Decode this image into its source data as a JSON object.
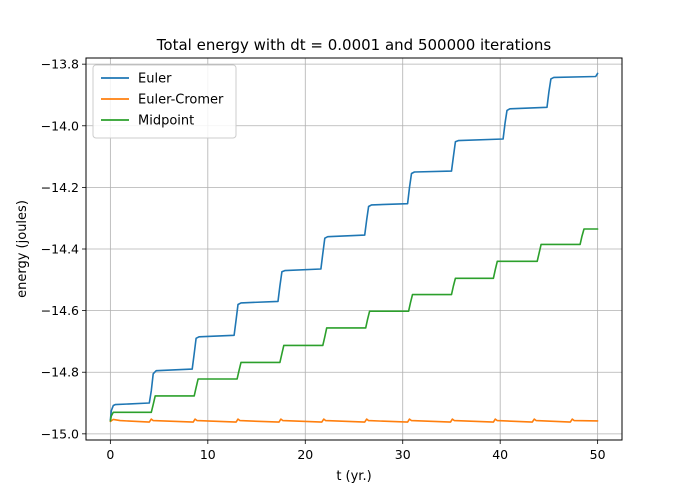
{
  "chart_data": {
    "type": "line",
    "title": "Total energy with dt = 0.0001 and 500000 iterations",
    "xlabel": "t (yr.)",
    "ylabel": "energy (joules)",
    "xlim": [
      -2.5,
      52.5
    ],
    "ylim": [
      -15.02,
      -13.78
    ],
    "xticks": [
      "0",
      "10",
      "20",
      "30",
      "40",
      "50"
    ],
    "yticks": [
      "−15.0",
      "−14.8",
      "−14.6",
      "−14.4",
      "−14.2",
      "−14.0",
      "−13.8"
    ],
    "xtick_values": [
      0,
      10,
      20,
      30,
      40,
      50
    ],
    "ytick_values": [
      -15.0,
      -14.8,
      -14.6,
      -14.4,
      -14.2,
      -14.0,
      -13.8
    ],
    "grid": true,
    "legend_position": "top-left",
    "series": [
      {
        "name": "Euler",
        "color": "#1f77b4",
        "x": [
          0,
          0.1,
          0.3,
          0.5,
          4.0,
          4.2,
          4.4,
          4.7,
          8.4,
          8.6,
          8.8,
          9.1,
          12.7,
          12.9,
          13.1,
          13.4,
          17.2,
          17.4,
          17.6,
          17.9,
          21.6,
          21.8,
          22.0,
          22.3,
          26.1,
          26.3,
          26.5,
          26.8,
          30.5,
          30.7,
          30.9,
          31.2,
          35.0,
          35.2,
          35.4,
          35.7,
          40.3,
          40.5,
          40.7,
          41.0,
          44.8,
          45.0,
          45.2,
          45.5,
          49.8,
          50.0
        ],
        "y": [
          -14.955,
          -14.925,
          -14.908,
          -14.905,
          -14.9,
          -14.86,
          -14.805,
          -14.795,
          -14.79,
          -14.74,
          -14.69,
          -14.685,
          -14.68,
          -14.63,
          -14.58,
          -14.575,
          -14.57,
          -14.52,
          -14.474,
          -14.47,
          -14.465,
          -14.415,
          -14.365,
          -14.36,
          -14.355,
          -14.305,
          -14.262,
          -14.257,
          -14.253,
          -14.2,
          -14.155,
          -14.15,
          -14.147,
          -14.1,
          -14.052,
          -14.048,
          -14.043,
          -13.99,
          -13.95,
          -13.945,
          -13.94,
          -13.89,
          -13.848,
          -13.843,
          -13.84,
          -13.83
        ]
      },
      {
        "name": "Euler-Cromer",
        "color": "#ff7f0e",
        "x": [
          0,
          0.3,
          1.0,
          4.0,
          4.2,
          4.4,
          8.5,
          8.7,
          8.9,
          12.9,
          13.1,
          13.3,
          17.3,
          17.5,
          17.7,
          21.7,
          21.9,
          22.1,
          26.1,
          26.3,
          26.5,
          30.5,
          30.7,
          30.9,
          34.9,
          35.1,
          35.3,
          39.3,
          39.5,
          39.7,
          43.3,
          43.5,
          43.7,
          47.2,
          47.4,
          47.6,
          50.0
        ],
        "y": [
          -14.96,
          -14.953,
          -14.957,
          -14.962,
          -14.952,
          -14.957,
          -14.962,
          -14.952,
          -14.957,
          -14.962,
          -14.952,
          -14.957,
          -14.962,
          -14.952,
          -14.957,
          -14.962,
          -14.952,
          -14.957,
          -14.962,
          -14.952,
          -14.957,
          -14.962,
          -14.952,
          -14.957,
          -14.962,
          -14.952,
          -14.957,
          -14.962,
          -14.952,
          -14.957,
          -14.962,
          -14.952,
          -14.957,
          -14.962,
          -14.952,
          -14.957,
          -14.958
        ]
      },
      {
        "name": "Midpoint",
        "color": "#2ca02c",
        "x": [
          0,
          0.1,
          0.3,
          4.2,
          4.4,
          4.6,
          8.6,
          8.8,
          9.0,
          13.0,
          13.2,
          13.4,
          17.4,
          17.6,
          17.8,
          21.8,
          22.0,
          22.2,
          26.2,
          26.4,
          26.6,
          30.6,
          30.8,
          31.0,
          35.0,
          35.2,
          35.4,
          39.3,
          39.5,
          39.7,
          43.8,
          44.0,
          44.2,
          48.2,
          48.4,
          48.6,
          50.0
        ],
        "y": [
          -14.958,
          -14.942,
          -14.93,
          -14.93,
          -14.905,
          -14.877,
          -14.877,
          -14.85,
          -14.822,
          -14.822,
          -14.795,
          -14.768,
          -14.768,
          -14.74,
          -14.713,
          -14.713,
          -14.685,
          -14.656,
          -14.656,
          -14.628,
          -14.602,
          -14.602,
          -14.574,
          -14.548,
          -14.548,
          -14.52,
          -14.495,
          -14.495,
          -14.467,
          -14.44,
          -14.44,
          -14.412,
          -14.385,
          -14.385,
          -14.358,
          -14.335,
          -14.335
        ]
      }
    ]
  }
}
